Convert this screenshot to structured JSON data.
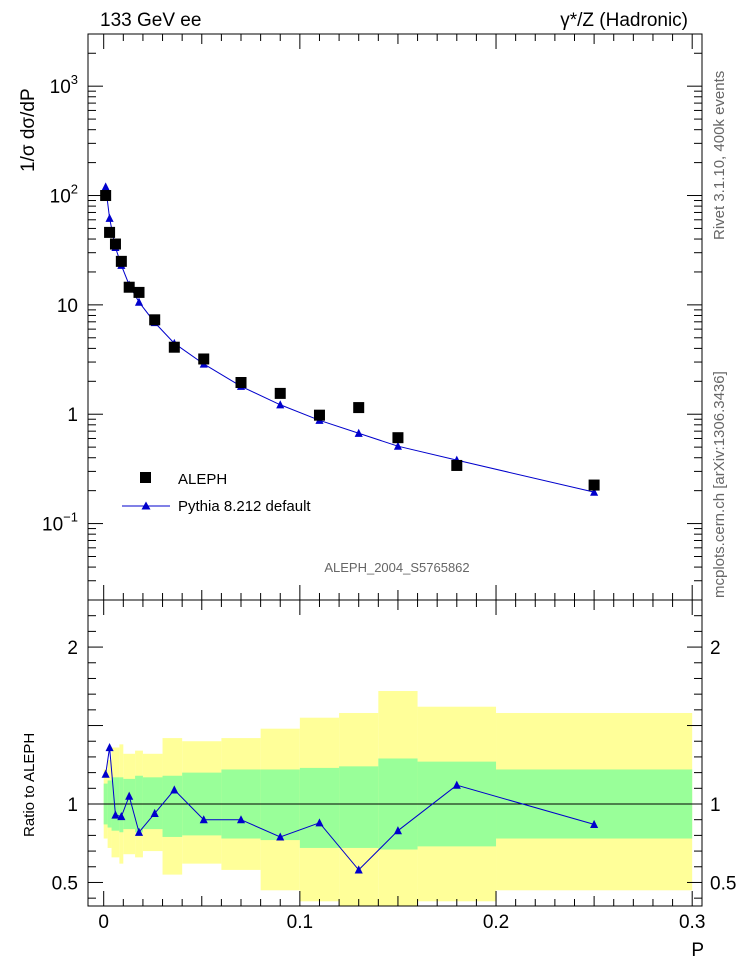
{
  "header": {
    "left": "133 GeV ee",
    "right": "γ*/Z (Hadronic)"
  },
  "side_labels": {
    "rivet": "Rivet 3.1.10,  400k events",
    "mcplots": "mcplots.cern.ch [arXiv:1306.3436]"
  },
  "watermark": "ALEPH_2004_S5765862",
  "axes": {
    "top_ylabel": "1/σ  dσ/dP",
    "ratio_ylabel": "Ratio to ALEPH",
    "xlabel": "P",
    "top_ylim": [
      0.02,
      3000
    ],
    "top_yscale": "log",
    "ratio_ylim": [
      0.35,
      2.3
    ],
    "xlim": [
      -0.008,
      0.305
    ],
    "top_yticks": [
      {
        "v": 1000,
        "base": "10",
        "exp": "3"
      },
      {
        "v": 100,
        "base": "10",
        "exp": "2"
      },
      {
        "v": 10,
        "base": "10",
        "exp": ""
      },
      {
        "v": 1,
        "base": "1",
        "exp": ""
      },
      {
        "v": 0.1,
        "base": "10",
        "exp": "−1"
      }
    ],
    "ratio_yticks": [
      {
        "v": 2,
        "t": "2"
      },
      {
        "v": 1,
        "t": "1"
      },
      {
        "v": 0.5,
        "t": "0.5"
      }
    ],
    "xticks": [
      {
        "v": 0,
        "t": "0"
      },
      {
        "v": 0.1,
        "t": "0.1"
      },
      {
        "v": 0.2,
        "t": "0.2"
      },
      {
        "v": 0.3,
        "t": "0.3"
      }
    ]
  },
  "legend": {
    "data": "ALEPH",
    "mc": "Pythia 8.212 default"
  },
  "colors": {
    "mc": "#0000cc",
    "band_inner": "#99ff99",
    "band_outer": "#ffff99",
    "data": "#000000"
  },
  "chart_data": {
    "type": "scatter",
    "x": [
      0.001,
      0.003,
      0.006,
      0.009,
      0.013,
      0.018,
      0.026,
      0.036,
      0.051,
      0.07,
      0.09,
      0.11,
      0.13,
      0.15,
      0.18,
      0.25
    ],
    "x_edges": [
      0,
      0.002,
      0.004,
      0.008,
      0.01,
      0.016,
      0.02,
      0.03,
      0.04,
      0.06,
      0.08,
      0.1,
      0.12,
      0.14,
      0.16,
      0.2,
      0.3
    ],
    "series": [
      {
        "name": "ALEPH",
        "values": [
          100,
          46,
          36,
          25,
          14.5,
          13,
          7.3,
          4.1,
          3.2,
          1.95,
          1.55,
          0.98,
          1.15,
          0.61,
          0.34,
          0.225
        ]
      },
      {
        "name": "Pythia 8.212 default",
        "values": [
          120,
          62,
          33.5,
          23,
          15.2,
          10.6,
          6.9,
          4.45,
          2.88,
          1.8,
          1.22,
          0.88,
          0.67,
          0.51,
          0.38,
          0.194
        ]
      }
    ],
    "ratio": [
      1.19,
      1.36,
      0.93,
      0.92,
      1.05,
      0.82,
      0.94,
      1.09,
      0.9,
      0.9,
      0.79,
      0.88,
      0.58,
      0.83,
      1.12,
      0.87
    ],
    "band_inner": [
      [
        0.87,
        1.13
      ],
      [
        0.85,
        1.15
      ],
      [
        0.83,
        1.17
      ],
      [
        0.82,
        1.17
      ],
      [
        0.84,
        1.16
      ],
      [
        0.82,
        1.18
      ],
      [
        0.84,
        1.17
      ],
      [
        0.79,
        1.18
      ],
      [
        0.8,
        1.2
      ],
      [
        0.78,
        1.22
      ],
      [
        0.77,
        1.22
      ],
      [
        0.72,
        1.23
      ],
      [
        0.72,
        1.24
      ],
      [
        0.71,
        1.29
      ],
      [
        0.73,
        1.27
      ],
      [
        0.78,
        1.22
      ]
    ],
    "band_outer": [
      [
        0.78,
        1.22
      ],
      [
        0.72,
        1.28
      ],
      [
        0.66,
        1.36
      ],
      [
        0.62,
        1.38
      ],
      [
        0.68,
        1.32
      ],
      [
        0.66,
        1.34
      ],
      [
        0.7,
        1.32
      ],
      [
        0.55,
        1.42
      ],
      [
        0.62,
        1.4
      ],
      [
        0.58,
        1.42
      ],
      [
        0.45,
        1.48
      ],
      [
        0.38,
        1.55
      ],
      [
        0.3,
        1.58
      ],
      [
        0.3,
        1.72
      ],
      [
        0.38,
        1.62
      ],
      [
        0.45,
        1.58
      ]
    ]
  }
}
